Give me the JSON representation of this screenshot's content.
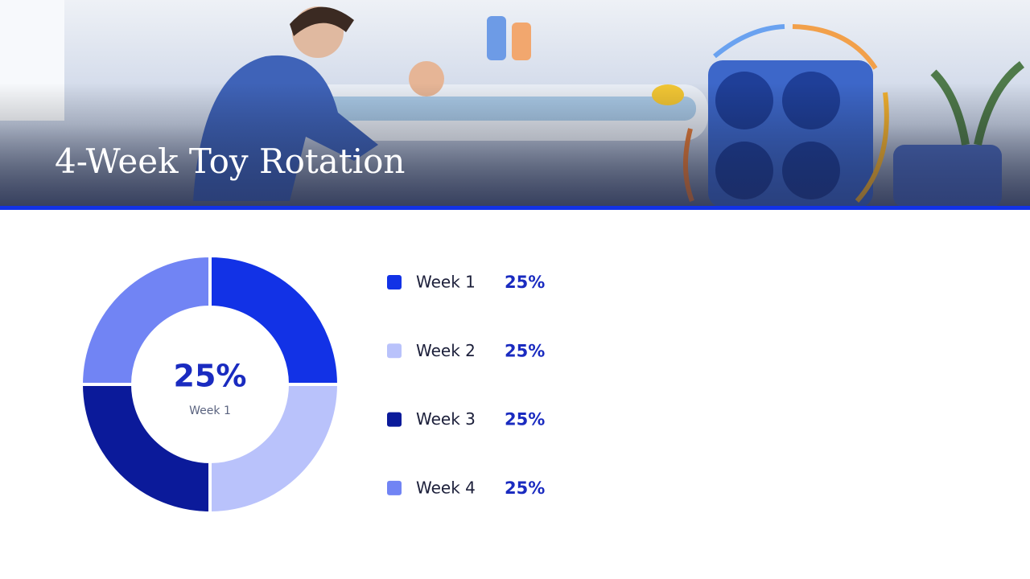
{
  "chart_data": {
    "type": "pie",
    "donut": true,
    "title": "4-Week Toy Rotation",
    "categories": [
      "Week 1",
      "Week 2",
      "Week 3",
      "Week 4"
    ],
    "values": [
      25,
      25,
      25,
      25
    ],
    "value_labels": [
      "25%",
      "25%",
      "25%",
      "25%"
    ],
    "colors": [
      "#1232e6",
      "#b9c2fb",
      "#0b1a9a",
      "#7184f4"
    ]
  }
}
